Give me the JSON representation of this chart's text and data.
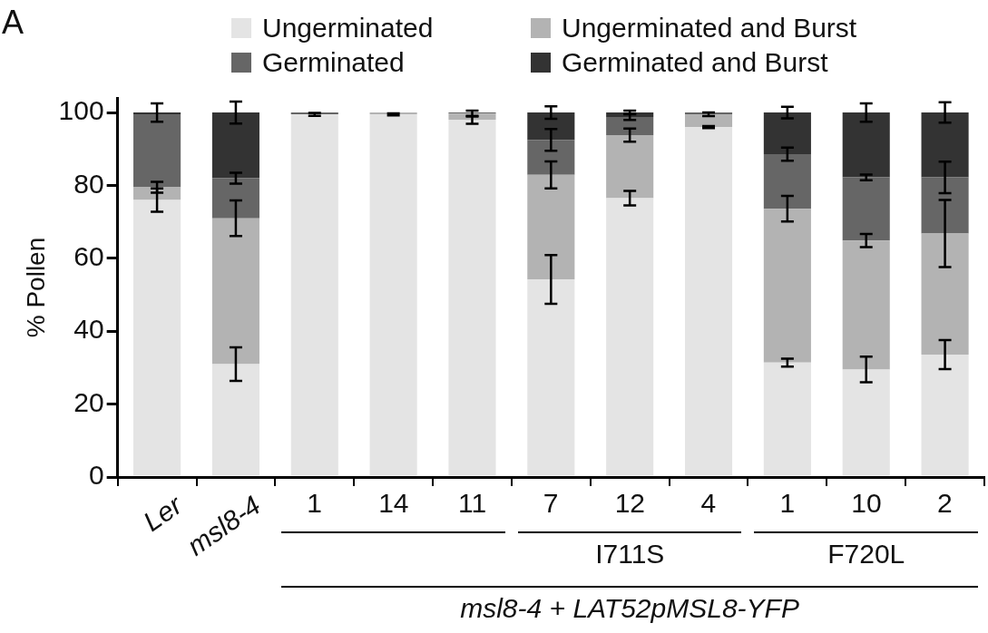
{
  "chart_data": {
    "type": "bar",
    "stacked": true,
    "ylabel": "% Pollen",
    "legend": "top",
    "ylim": [
      0,
      104
    ],
    "yticks": [
      0,
      20,
      40,
      60,
      80,
      100
    ],
    "categories": [
      "Ler",
      "msl8-4",
      "1",
      "14",
      "11",
      "7",
      "12",
      "4",
      "1",
      "10",
      "2"
    ],
    "annotations": [
      "A",
      "I711S",
      "F720L",
      "msl8-4 + LAT52pMSL8-YFP"
    ],
    "series": [
      {
        "name": "Ungerminated",
        "color": "#e4e4e4",
        "values": [
          76,
          31,
          99.5,
          99.5,
          98,
          54.2,
          76.5,
          96,
          31.4,
          29.5,
          33.6
        ],
        "errors": [
          3.2,
          4.6,
          0.4,
          0.3,
          1.1,
          6.7,
          2,
          0.3,
          1.1,
          3.5,
          4
        ]
      },
      {
        "name": "Ungerminated and Burst",
        "color": "#b3b3b3",
        "values": [
          3.5,
          40,
          0,
          0.5,
          1.7,
          28.7,
          17.3,
          3.5,
          42.2,
          35.4,
          33.2
        ],
        "errors": [
          1.5,
          4.9,
          null,
          null,
          0.8,
          3.7,
          1.8,
          0.5,
          3.5,
          1.8,
          9.2
        ]
      },
      {
        "name": "Germinated",
        "color": "#666666",
        "values": [
          20,
          11,
          0.5,
          0,
          0.3,
          9.6,
          5,
          0.5,
          15,
          17.3,
          15.4
        ],
        "errors": [
          null,
          1.5,
          null,
          null,
          null,
          3,
          0.85,
          null,
          1.8,
          0.8,
          4.3
        ]
      },
      {
        "name": "Germinated and Burst",
        "color": "#333333",
        "values": [
          0.5,
          18,
          0,
          0,
          0,
          7.5,
          1.2,
          0,
          11.4,
          17.8,
          17.8
        ],
        "errors": [
          2.5,
          3,
          null,
          null,
          null,
          1.7,
          0.5,
          null,
          1.6,
          2.5,
          2.8
        ]
      }
    ]
  }
}
